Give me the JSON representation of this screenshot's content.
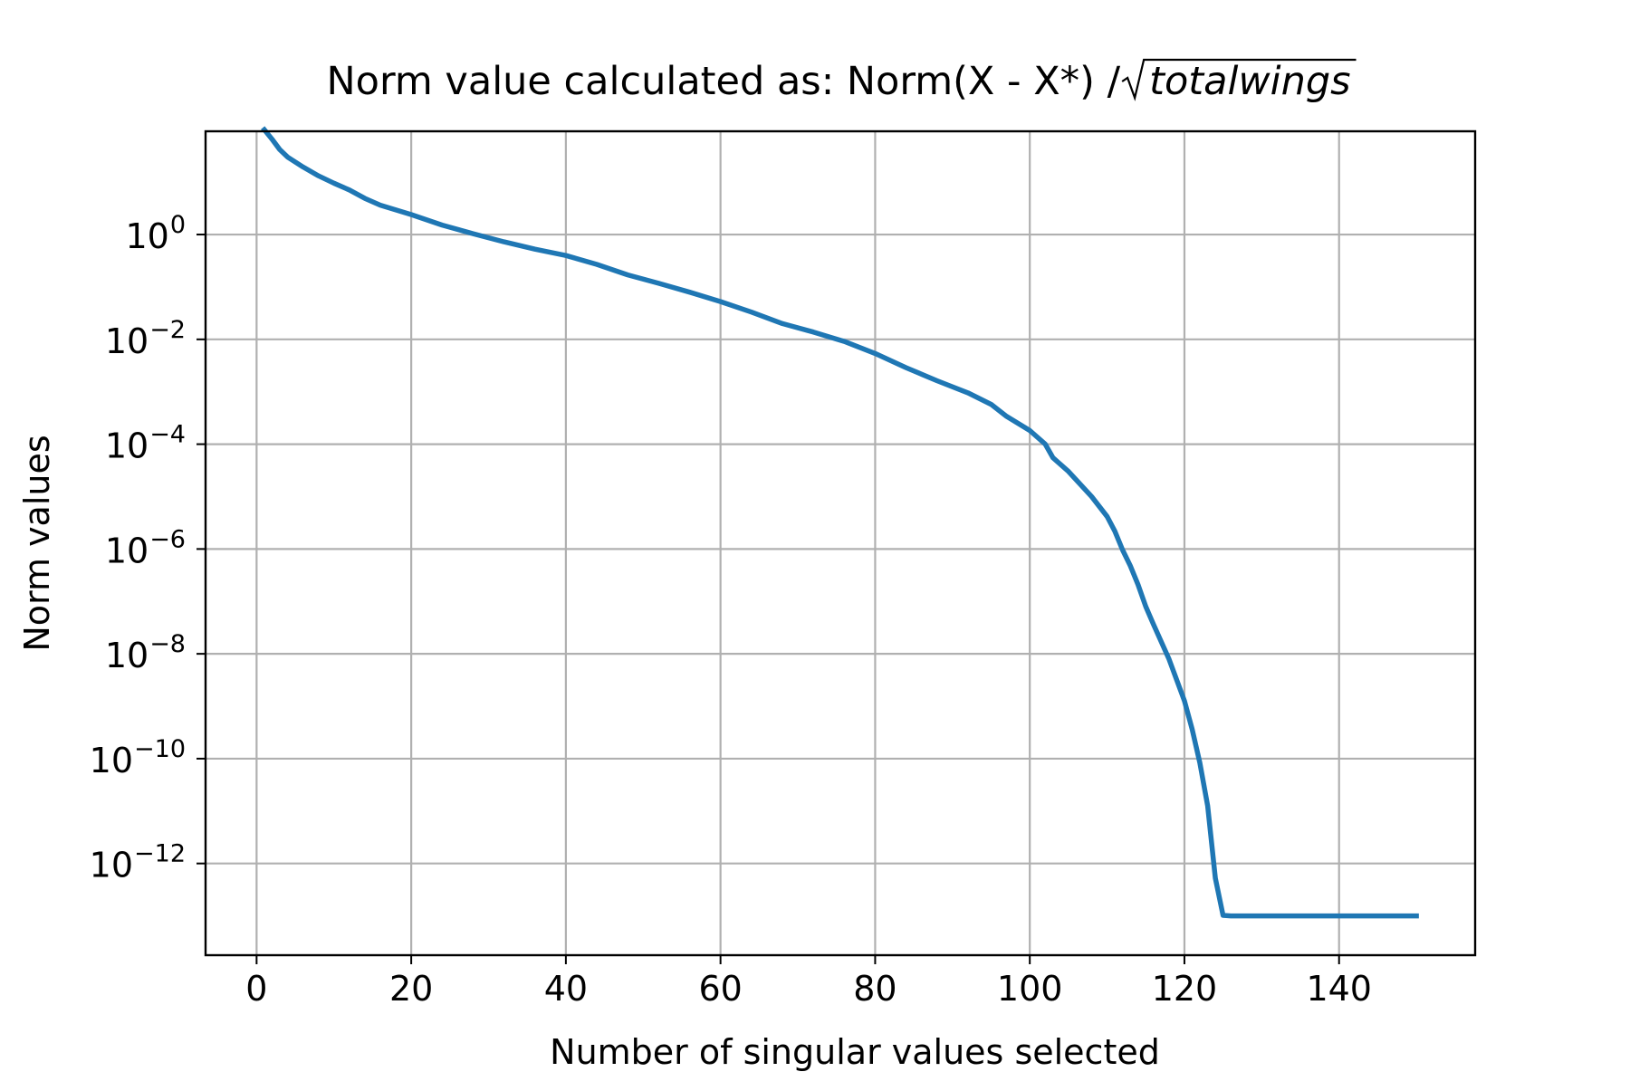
{
  "chart_data": {
    "type": "line",
    "title": {
      "prefix": "Norm value calculated as: Norm(X - X*) / ",
      "radicand": "totalwings"
    },
    "xlabel": "Number of singular values selected",
    "ylabel": "Norm values",
    "xlim": [
      -6.6,
      157.6
    ],
    "ylim_log10": [
      -13.75,
      1.97
    ],
    "yscale": "log",
    "grid": true,
    "legend": "none",
    "x_ticks": [
      0,
      20,
      40,
      60,
      80,
      100,
      120,
      140
    ],
    "y_ticks": [
      {
        "base": "10",
        "exp": "0",
        "log10": 0
      },
      {
        "base": "10",
        "exp": "−2",
        "log10": -2
      },
      {
        "base": "10",
        "exp": "−4",
        "log10": -4
      },
      {
        "base": "10",
        "exp": "−6",
        "log10": -6
      },
      {
        "base": "10",
        "exp": "−8",
        "log10": -8
      },
      {
        "base": "10",
        "exp": "−10",
        "log10": -10
      },
      {
        "base": "10",
        "exp": "−12",
        "log10": -12
      }
    ],
    "series": [
      {
        "color": "#1f77b4",
        "x": [
          1,
          2,
          3,
          4,
          6,
          8,
          10,
          12,
          14,
          16,
          20,
          24,
          28,
          32,
          36,
          40,
          44,
          48,
          52,
          56,
          60,
          64,
          68,
          72,
          76,
          80,
          84,
          88,
          92,
          95,
          97,
          100,
          102,
          103,
          105,
          108,
          110,
          111,
          112,
          113,
          114,
          115,
          116,
          118,
          120,
          121,
          122,
          123,
          124,
          125,
          126,
          130,
          140,
          150
        ],
        "y": [
          2.0,
          1.82,
          1.62,
          1.48,
          1.29,
          1.12,
          0.98,
          0.85,
          0.69,
          0.56,
          0.38,
          0.18,
          0.016,
          -0.14,
          -0.28,
          -0.4,
          -0.57,
          -0.77,
          -0.93,
          -1.1,
          -1.28,
          -1.48,
          -1.7,
          -1.86,
          -2.04,
          -2.27,
          -2.54,
          -2.79,
          -3.02,
          -3.24,
          -3.47,
          -3.74,
          -4.0,
          -4.26,
          -4.52,
          -5.0,
          -5.38,
          -5.66,
          -6.02,
          -6.32,
          -6.68,
          -7.1,
          -7.44,
          -8.1,
          -8.9,
          -9.44,
          -10.08,
          -10.9,
          -12.28,
          -12.99,
          -13.0,
          -13.0,
          -13.0,
          -13.0
        ],
        "y_scale": "log10 (values are exponents of the plotted y)"
      }
    ]
  }
}
